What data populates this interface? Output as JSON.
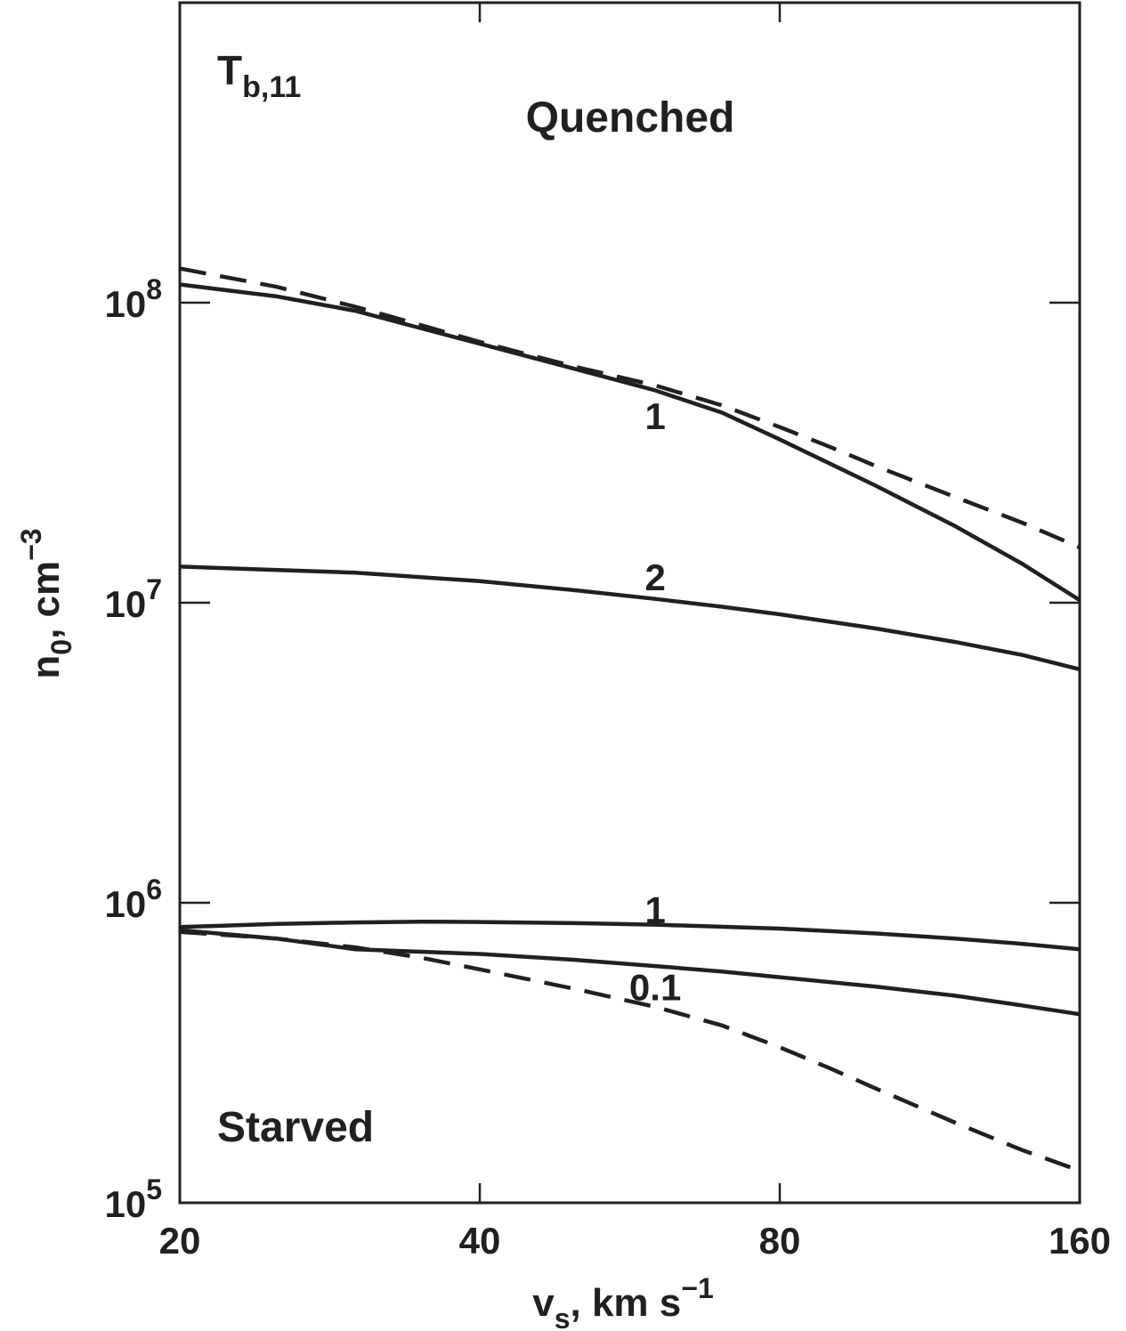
{
  "chart_data": {
    "type": "line",
    "title": "",
    "xlabel": {
      "base": "v",
      "sub": "s",
      "tail": ", km s",
      "sup": "−1"
    },
    "ylabel": {
      "base": "n",
      "sub": "0",
      "tail": ", cm",
      "sup": "−3"
    },
    "x_scale": "log2",
    "y_scale": "log",
    "xlim": [
      20,
      160
    ],
    "ylim": [
      100000,
      1000000000
    ],
    "x_ticks": [
      {
        "value": 20,
        "label": "20"
      },
      {
        "value": 40,
        "label": "40"
      },
      {
        "value": 80,
        "label": "80"
      },
      {
        "value": 160,
        "label": "160"
      }
    ],
    "y_ticks": [
      {
        "value": 100000,
        "base": "10",
        "exp": "5"
      },
      {
        "value": 1000000,
        "base": "10",
        "exp": "6"
      },
      {
        "value": 10000000,
        "base": "10",
        "exp": "7"
      },
      {
        "value": 100000000,
        "base": "10",
        "exp": "8"
      }
    ],
    "legend_title": {
      "base": "T",
      "sub": "b,11"
    },
    "region_labels": [
      "Quenched",
      "Starved"
    ],
    "series": [
      {
        "label": "1",
        "style": "solid",
        "label_at": {
          "x": 60,
          "y": 42000000
        },
        "points": [
          [
            20,
            115000000
          ],
          [
            25,
            105000000
          ],
          [
            30,
            94000000
          ],
          [
            35,
            82000000
          ],
          [
            40,
            73000000
          ],
          [
            50,
            60000000
          ],
          [
            60,
            51000000
          ],
          [
            70,
            43000000
          ],
          [
            80,
            35000000
          ],
          [
            90,
            29000000
          ],
          [
            100,
            24500000
          ],
          [
            120,
            18000000
          ],
          [
            140,
            13500000
          ],
          [
            160,
            10200000
          ]
        ]
      },
      {
        "label": "2",
        "style": "solid",
        "label_at": {
          "x": 60,
          "y": 12200000
        },
        "points": [
          [
            20,
            13200000
          ],
          [
            30,
            12600000
          ],
          [
            40,
            11800000
          ],
          [
            50,
            11000000
          ],
          [
            60,
            10300000
          ],
          [
            70,
            9700000
          ],
          [
            80,
            9150000
          ],
          [
            100,
            8200000
          ],
          [
            120,
            7400000
          ],
          [
            140,
            6700000
          ],
          [
            160,
            6000000
          ]
        ]
      },
      {
        "label": "1",
        "style": "solid",
        "label_at": {
          "x": 60,
          "y": 950000
        },
        "points": [
          [
            20,
            830000
          ],
          [
            25,
            850000
          ],
          [
            30,
            860000
          ],
          [
            35,
            865000
          ],
          [
            40,
            863000
          ],
          [
            50,
            855000
          ],
          [
            60,
            845000
          ],
          [
            80,
            820000
          ],
          [
            100,
            790000
          ],
          [
            120,
            760000
          ],
          [
            140,
            730000
          ],
          [
            160,
            700000
          ]
        ]
      },
      {
        "label": "0.1",
        "style": "solid",
        "label_at": {
          "x": 60,
          "y": 525000
        },
        "points": [
          [
            20,
            810000
          ],
          [
            25,
            760000
          ],
          [
            30,
            700000
          ],
          [
            40,
            675000
          ],
          [
            50,
            645000
          ],
          [
            60,
            615000
          ],
          [
            70,
            590000
          ],
          [
            80,
            565000
          ],
          [
            100,
            525000
          ],
          [
            120,
            490000
          ],
          [
            140,
            455000
          ],
          [
            160,
            425000
          ]
        ]
      },
      {
        "label": "",
        "style": "dashed",
        "points": [
          [
            20,
            130000000
          ],
          [
            25,
            113000000
          ],
          [
            30,
            97000000
          ],
          [
            35,
            84000000
          ],
          [
            40,
            74000000
          ],
          [
            50,
            61000000
          ],
          [
            60,
            53000000
          ],
          [
            70,
            45500000
          ],
          [
            80,
            38500000
          ],
          [
            90,
            33000000
          ],
          [
            100,
            28500000
          ],
          [
            120,
            22500000
          ],
          [
            140,
            18500000
          ],
          [
            160,
            15300000
          ]
        ]
      },
      {
        "label": "",
        "style": "dashed",
        "points": [
          [
            20,
            800000
          ],
          [
            25,
            760000
          ],
          [
            30,
            710000
          ],
          [
            35,
            655000
          ],
          [
            40,
            600000
          ],
          [
            50,
            515000
          ],
          [
            60,
            450000
          ],
          [
            70,
            390000
          ],
          [
            80,
            330000
          ],
          [
            90,
            280000
          ],
          [
            100,
            240000
          ],
          [
            120,
            185000
          ],
          [
            140,
            150000
          ],
          [
            160,
            128000
          ]
        ]
      }
    ]
  }
}
